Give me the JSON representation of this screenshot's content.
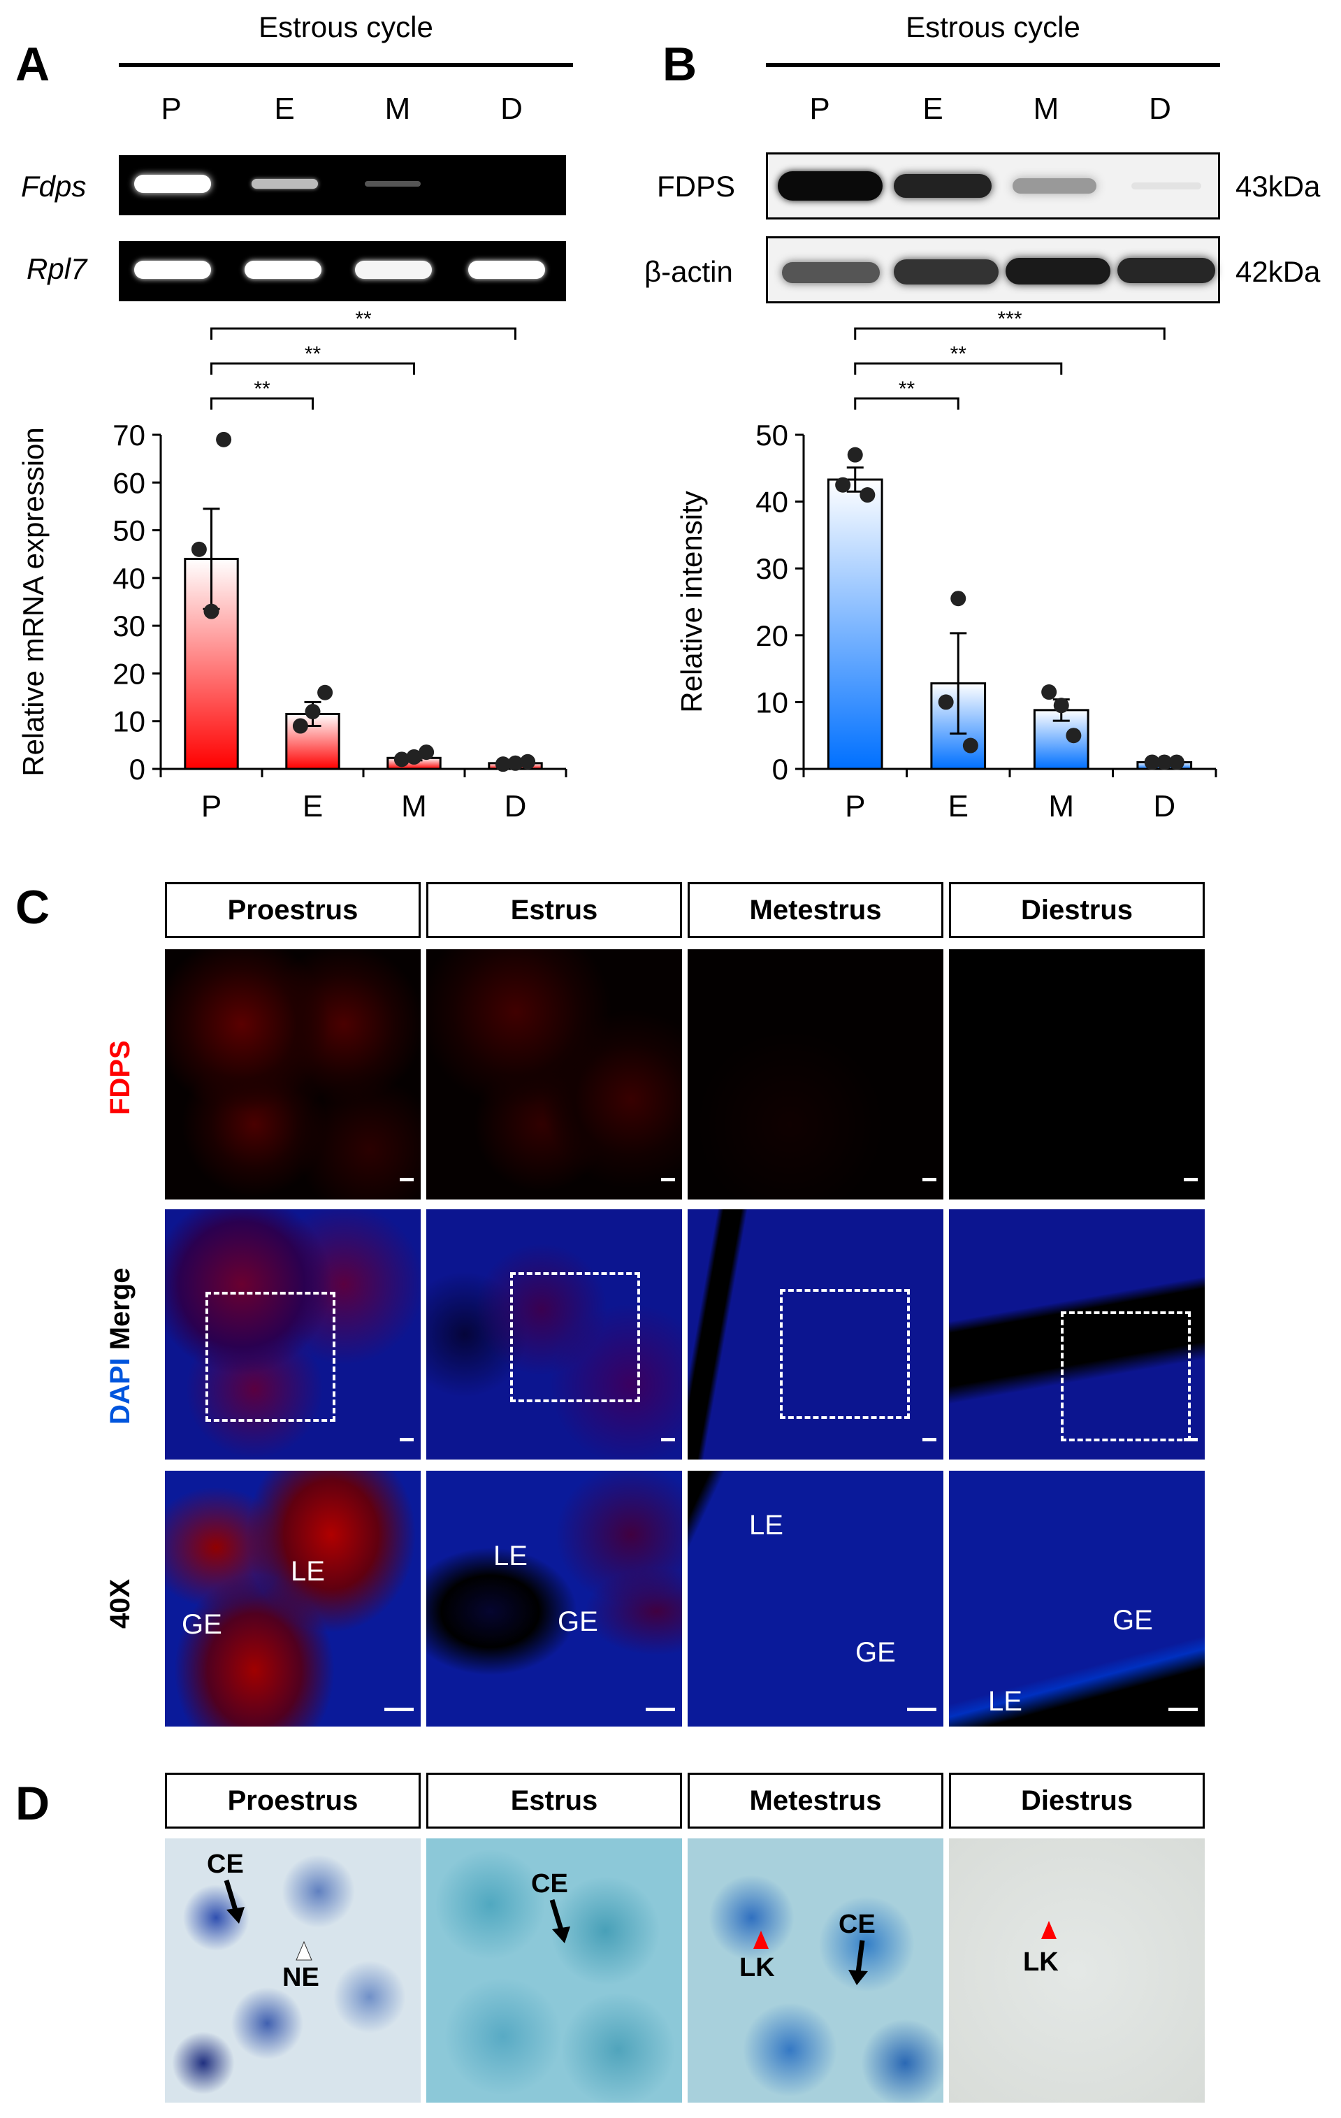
{
  "panels": {
    "a": "A",
    "b": "B",
    "c": "C",
    "d": "D"
  },
  "panel_a": {
    "header": "Estrous cycle",
    "lanes": [
      "P",
      "E",
      "M",
      "D"
    ],
    "gene1": "Fdps",
    "gene2": "Rpl7",
    "sig": [
      "**",
      "**",
      "**"
    ]
  },
  "panel_b": {
    "header": "Estrous cycle",
    "lanes": [
      "P",
      "E",
      "M",
      "D"
    ],
    "protein1": "FDPS",
    "protein2": "β-actin",
    "kda1": "43kDa",
    "kda2": "42kDa",
    "sig": [
      "**",
      "**",
      "***"
    ]
  },
  "panel_c": {
    "stages": [
      "Proestrus",
      "Estrus",
      "Metestrus",
      "Diestrus"
    ],
    "row1_label": "FDPS",
    "row2_label_dapi": "DAPI",
    "row2_label_merge": "Merge",
    "row3_label": "40X",
    "labels_40x": [
      [
        "LE",
        "GE"
      ],
      [
        "LE",
        "GE"
      ],
      [
        "LE",
        "GE"
      ],
      [
        "GE",
        "LE"
      ]
    ]
  },
  "panel_d": {
    "stages": [
      "Proestrus",
      "Estrus",
      "Metestrus",
      "Diestrus"
    ],
    "labels": [
      [
        "CE",
        "NE"
      ],
      [
        "CE"
      ],
      [
        "CE",
        "LK"
      ],
      [
        "LK"
      ]
    ]
  },
  "chart_data": [
    {
      "type": "bar",
      "categories": [
        "P",
        "E",
        "M",
        "D"
      ],
      "values": [
        44,
        11.5,
        2.3,
        1.2
      ],
      "errors": [
        10.5,
        2.5,
        0.5,
        0.3
      ],
      "points": [
        [
          46,
          33,
          69
        ],
        [
          9,
          12,
          16
        ],
        [
          2,
          2.5,
          3.5
        ],
        [
          1,
          1.2,
          1.5
        ]
      ],
      "ylabel": "Relative mRNA expression",
      "xlabel": "",
      "ylim": [
        0,
        70
      ],
      "yticks": [
        0,
        10,
        20,
        30,
        40,
        50,
        60,
        70
      ],
      "color": "#ff0000"
    },
    {
      "type": "bar",
      "categories": [
        "P",
        "E",
        "M",
        "D"
      ],
      "values": [
        43.3,
        12.8,
        8.8,
        1.0
      ],
      "errors": [
        1.8,
        7.5,
        1.6,
        0.1
      ],
      "points": [
        [
          42.5,
          47,
          41
        ],
        [
          10,
          25.5,
          3.5
        ],
        [
          11.5,
          9.5,
          5
        ],
        [
          1,
          1,
          1
        ]
      ],
      "ylabel": "Relative intensity",
      "xlabel": "",
      "ylim": [
        0,
        50
      ],
      "yticks": [
        0,
        10,
        20,
        30,
        40,
        50
      ],
      "color": "#0070ff"
    }
  ]
}
